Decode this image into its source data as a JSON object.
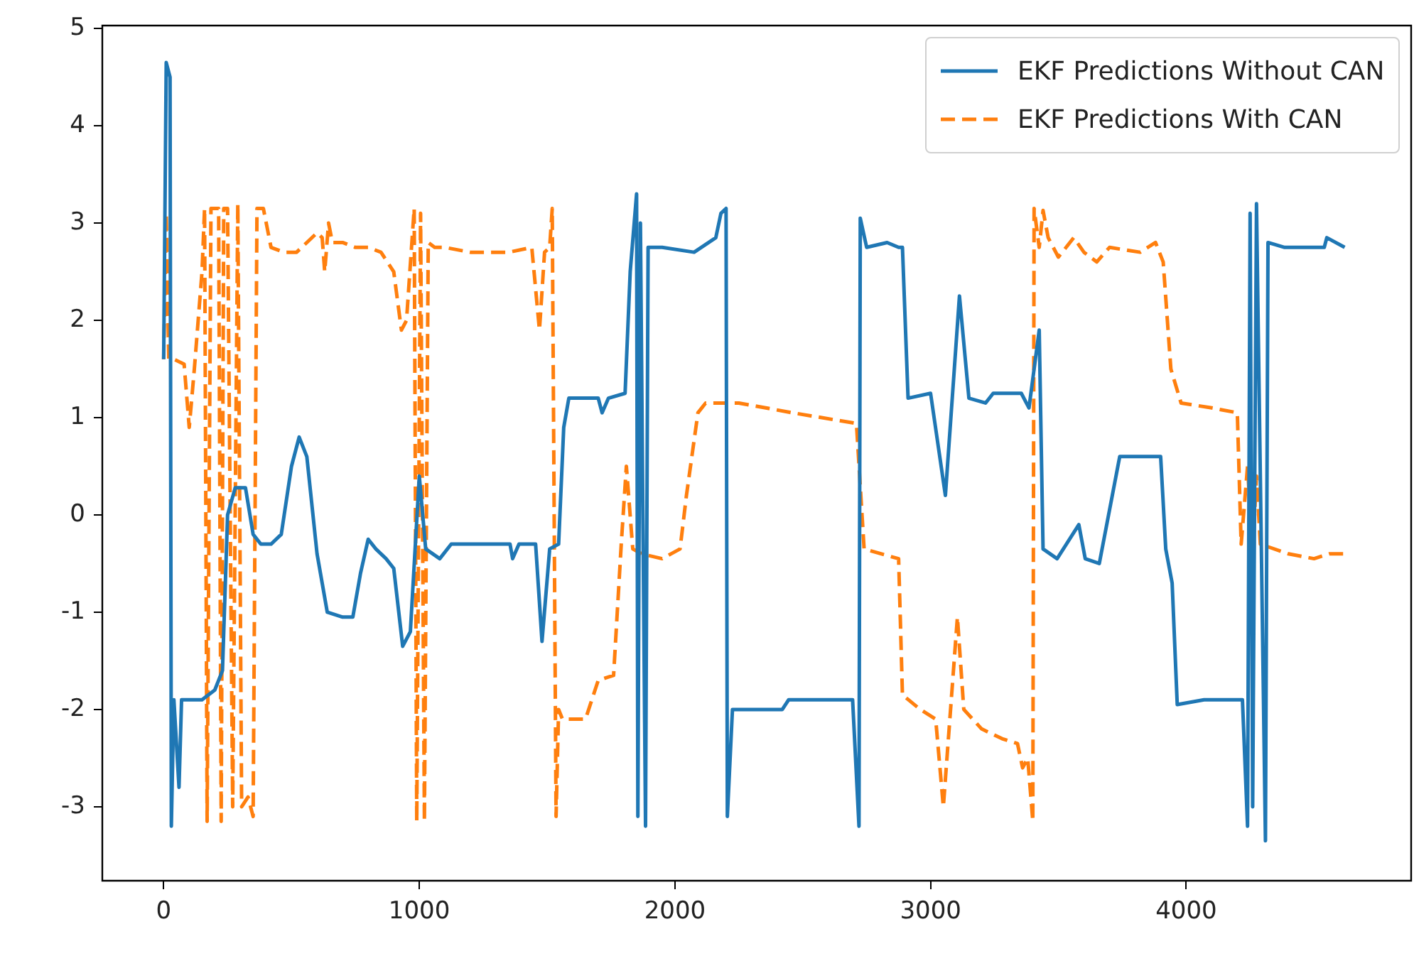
{
  "chart_data": {
    "type": "line",
    "xlim": [
      -240,
      4880
    ],
    "ylim": [
      -3.76,
      5.03
    ],
    "xticks": [
      0,
      1000,
      2000,
      3000,
      4000
    ],
    "yticks": [
      -3,
      -2,
      -1,
      0,
      1,
      2,
      3,
      4,
      5
    ],
    "grid": false,
    "legend": "top right",
    "series": [
      {
        "name": "EKF Predictions Without CAN",
        "color": "#1f77b4",
        "line_style": "solid",
        "x": [
          0,
          10,
          25,
          30,
          40,
          60,
          70,
          150,
          200,
          230,
          250,
          280,
          320,
          350,
          380,
          420,
          460,
          500,
          530,
          560,
          600,
          640,
          700,
          740,
          770,
          800,
          830,
          870,
          900,
          935,
          965,
          1000,
          1025,
          1080,
          1125,
          1355,
          1365,
          1390,
          1455,
          1480,
          1510,
          1545,
          1565,
          1585,
          1700,
          1715,
          1740,
          1805,
          1825,
          1850,
          1855,
          1865,
          1885,
          1895,
          1950,
          2075,
          2160,
          2180,
          2200,
          2205,
          2225,
          2420,
          2445,
          2695,
          2720,
          2725,
          2750,
          2830,
          2875,
          2890,
          2912,
          3000,
          3058,
          3113,
          3150,
          3215,
          3245,
          3355,
          3385,
          3425,
          3440,
          3495,
          3580,
          3605,
          3660,
          3740,
          3900,
          3920,
          3945,
          3965,
          4070,
          4220,
          4240,
          4250,
          4260,
          4275,
          4310,
          4320,
          4385,
          4540,
          4550,
          4620
        ],
        "values": [
          1.6,
          4.65,
          4.5,
          -3.2,
          -1.9,
          -2.8,
          -1.9,
          -1.9,
          -1.8,
          -1.6,
          0.0,
          0.28,
          0.28,
          -0.2,
          -0.3,
          -0.3,
          -0.2,
          0.5,
          0.8,
          0.6,
          -0.4,
          -1.0,
          -1.05,
          -1.05,
          -0.6,
          -0.25,
          -0.35,
          -0.45,
          -0.55,
          -1.35,
          -1.2,
          0.4,
          -0.35,
          -0.45,
          -0.3,
          -0.3,
          -0.45,
          -0.3,
          -0.3,
          -1.3,
          -0.35,
          -0.3,
          0.9,
          1.2,
          1.2,
          1.05,
          1.2,
          1.25,
          2.5,
          3.3,
          -3.1,
          3.0,
          -3.2,
          2.75,
          2.75,
          2.7,
          2.85,
          3.1,
          3.15,
          -3.1,
          -2.0,
          -2.0,
          -1.9,
          -1.9,
          -3.2,
          3.05,
          2.75,
          2.8,
          2.75,
          2.75,
          1.2,
          1.25,
          0.2,
          2.25,
          1.2,
          1.15,
          1.25,
          1.25,
          1.1,
          1.9,
          -0.35,
          -0.45,
          -0.1,
          -0.45,
          -0.5,
          0.6,
          0.6,
          -0.35,
          -0.7,
          -1.95,
          -1.9,
          -1.9,
          -3.2,
          3.1,
          -3.0,
          3.2,
          -3.35,
          2.8,
          2.75,
          2.75,
          2.85,
          2.75
        ]
      },
      {
        "name": "EKF Predictions With CAN",
        "color": "#ff7f0e",
        "line_style": "dashed",
        "x": [
          0,
          10,
          20,
          40,
          80,
          100,
          120,
          150,
          160,
          170,
          185,
          215,
          225,
          235,
          250,
          270,
          290,
          305,
          330,
          350,
          365,
          390,
          420,
          470,
          520,
          560,
          600,
          620,
          630,
          645,
          660,
          700,
          750,
          800,
          850,
          900,
          930,
          950,
          980,
          990,
          1005,
          1020,
          1035,
          1060,
          1100,
          1200,
          1350,
          1440,
          1470,
          1490,
          1510,
          1520,
          1535,
          1545,
          1560,
          1650,
          1700,
          1760,
          1790,
          1810,
          1835,
          1870,
          1950,
          2020,
          2045,
          2090,
          2120,
          2250,
          2460,
          2710,
          2740,
          2875,
          2890,
          2960,
          3020,
          3050,
          3105,
          3130,
          3200,
          3280,
          3340,
          3360,
          3380,
          3400,
          3405,
          3425,
          3440,
          3460,
          3500,
          3560,
          3600,
          3650,
          3700,
          3820,
          3880,
          3910,
          3940,
          3980,
          4100,
          4200,
          4215,
          4240,
          4260,
          4275,
          4290,
          4400,
          4500,
          4560,
          4620
        ],
        "values": [
          1.6,
          3.1,
          1.6,
          1.6,
          1.55,
          0.9,
          1.5,
          2.5,
          3.15,
          -3.15,
          3.15,
          3.15,
          -3.15,
          3.15,
          3.15,
          -3.0,
          3.2,
          -3.0,
          -2.9,
          -3.1,
          3.15,
          3.15,
          2.75,
          2.7,
          2.7,
          2.8,
          2.9,
          2.85,
          2.5,
          3.0,
          2.8,
          2.8,
          2.75,
          2.75,
          2.7,
          2.5,
          1.9,
          2.0,
          3.15,
          -3.15,
          3.1,
          -3.15,
          2.8,
          2.75,
          2.75,
          2.7,
          2.7,
          2.75,
          1.9,
          2.7,
          2.75,
          3.15,
          -3.1,
          -2.0,
          -2.1,
          -2.1,
          -1.7,
          -1.65,
          -0.3,
          0.5,
          -0.35,
          -0.4,
          -0.45,
          -0.35,
          0.2,
          1.05,
          1.15,
          1.15,
          1.05,
          0.94,
          -0.35,
          -0.45,
          -1.85,
          -2.0,
          -2.1,
          -3.0,
          -1.05,
          -2.0,
          -2.2,
          -2.3,
          -2.35,
          -2.6,
          -2.5,
          -3.15,
          3.15,
          2.75,
          3.13,
          2.85,
          2.65,
          2.85,
          2.7,
          2.6,
          2.75,
          2.7,
          2.8,
          2.6,
          1.5,
          1.15,
          1.1,
          1.05,
          -0.3,
          0.5,
          -0.4,
          0.4,
          -0.3,
          -0.4,
          -0.45,
          -0.4,
          -0.4
        ]
      }
    ]
  }
}
